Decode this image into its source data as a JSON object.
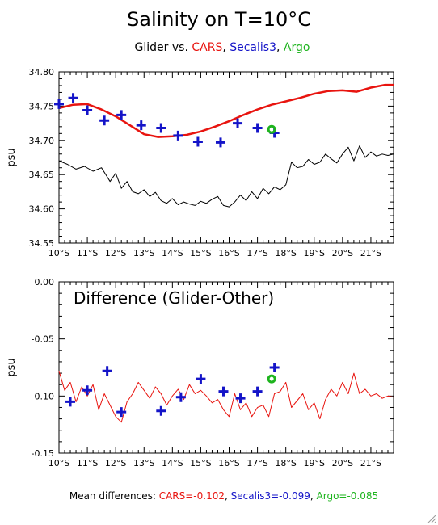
{
  "title": "Salinity on T=10°C",
  "subtitle": [
    {
      "text": "Glider vs. ",
      "color": "#000000"
    },
    {
      "text": "CARS",
      "color": "#e8140f"
    },
    {
      "text": ", ",
      "color": "#000000"
    },
    {
      "text": "Secalis3",
      "color": "#1414c8"
    },
    {
      "text": ", ",
      "color": "#000000"
    },
    {
      "text": "Argo",
      "color": "#1eb41e"
    }
  ],
  "footer": [
    {
      "text": "Mean differences: ",
      "color": "#000000"
    },
    {
      "text": "CARS=-0.102",
      "color": "#e8140f"
    },
    {
      "text": ", ",
      "color": "#000000"
    },
    {
      "text": "Secalis3=-0.099",
      "color": "#1414c8"
    },
    {
      "text": ", ",
      "color": "#000000"
    },
    {
      "text": "Argo=-0.085",
      "color": "#1eb41e"
    }
  ],
  "chart_data": [
    {
      "type": "line",
      "ylabel": "psu",
      "ylim": [
        34.55,
        34.8
      ],
      "xlim": [
        10.0,
        21.8
      ],
      "yticks": [
        "34.55",
        "34.60",
        "34.65",
        "34.70",
        "34.75",
        "34.80"
      ],
      "xticks": [
        "10°S",
        "11°S",
        "12°S",
        "13°S",
        "14°S",
        "15°S",
        "16°S",
        "17°S",
        "18°S",
        "19°S",
        "20°S",
        "21°S"
      ],
      "xtick_values": [
        10,
        11,
        12,
        13,
        14,
        15,
        16,
        17,
        18,
        19,
        20,
        21
      ],
      "series": [
        {
          "kind": "line",
          "color": "#e8140f",
          "width": 2.5,
          "x": [
            10.0,
            10.5,
            11.0,
            11.5,
            12.0,
            12.5,
            13.0,
            13.5,
            14.0,
            14.5,
            15.0,
            15.5,
            16.0,
            16.5,
            17.0,
            17.5,
            18.0,
            18.5,
            19.0,
            19.5,
            20.0,
            20.5,
            21.0,
            21.5,
            21.8
          ],
          "y": [
            34.747,
            34.752,
            34.753,
            34.745,
            34.735,
            34.722,
            34.709,
            34.705,
            34.706,
            34.708,
            34.713,
            34.72,
            34.728,
            34.737,
            34.745,
            34.752,
            34.757,
            34.762,
            34.768,
            34.772,
            34.773,
            34.771,
            34.777,
            34.781,
            34.781
          ]
        },
        {
          "kind": "line",
          "color": "#000000",
          "width": 1,
          "x": [
            10.0,
            10.3,
            10.6,
            10.9,
            11.2,
            11.5,
            11.8,
            12.0,
            12.2,
            12.4,
            12.6,
            12.8,
            13.0,
            13.2,
            13.4,
            13.6,
            13.8,
            14.0,
            14.2,
            14.4,
            14.6,
            14.8,
            15.0,
            15.2,
            15.4,
            15.6,
            15.8,
            16.0,
            16.2,
            16.4,
            16.6,
            16.8,
            17.0,
            17.2,
            17.4,
            17.6,
            17.8,
            18.0,
            18.2,
            18.4,
            18.6,
            18.8,
            19.0,
            19.2,
            19.4,
            19.6,
            19.8,
            20.0,
            20.2,
            20.4,
            20.6,
            20.8,
            21.0,
            21.2,
            21.4,
            21.6,
            21.8
          ],
          "y": [
            34.67,
            34.665,
            34.658,
            34.662,
            34.655,
            34.66,
            34.64,
            34.652,
            34.63,
            34.64,
            34.625,
            34.622,
            34.628,
            34.618,
            34.624,
            34.612,
            34.608,
            34.615,
            34.606,
            34.61,
            34.607,
            34.605,
            34.611,
            34.608,
            34.614,
            34.618,
            34.605,
            34.603,
            34.61,
            34.62,
            34.612,
            34.625,
            34.615,
            34.63,
            34.622,
            34.632,
            34.628,
            34.635,
            34.668,
            34.66,
            34.662,
            34.672,
            34.665,
            34.668,
            34.68,
            34.673,
            34.667,
            34.68,
            34.69,
            34.67,
            34.692,
            34.675,
            34.683,
            34.677,
            34.68,
            34.678,
            34.68
          ]
        },
        {
          "kind": "plus",
          "color": "#1414c8",
          "x": [
            10.0,
            10.5,
            11.0,
            11.6,
            12.2,
            12.9,
            13.6,
            14.2,
            14.9,
            15.7,
            16.3,
            17.0,
            17.6
          ],
          "y": [
            34.753,
            34.762,
            34.744,
            34.729,
            34.737,
            34.722,
            34.718,
            34.707,
            34.698,
            34.697,
            34.725,
            34.718,
            34.711
          ]
        },
        {
          "kind": "circle",
          "color": "#1eb41e",
          "x": [
            17.5
          ],
          "y": [
            34.716
          ]
        }
      ]
    },
    {
      "type": "line",
      "title": "Difference (Glider-Other)",
      "ylabel": "psu",
      "ylim": [
        -0.15,
        0.0
      ],
      "xlim": [
        10.0,
        21.8
      ],
      "yticks": [
        "-0.15",
        "-0.10",
        "-0.05",
        "0.00"
      ],
      "xticks": [
        "10°S",
        "11°S",
        "12°S",
        "13°S",
        "14°S",
        "15°S",
        "16°S",
        "17°S",
        "18°S",
        "19°S",
        "20°S",
        "21°S"
      ],
      "xtick_values": [
        10,
        11,
        12,
        13,
        14,
        15,
        16,
        17,
        18,
        19,
        20,
        21
      ],
      "series": [
        {
          "kind": "line",
          "color": "#e8140f",
          "width": 1,
          "x": [
            10.0,
            10.2,
            10.4,
            10.6,
            10.8,
            11.0,
            11.2,
            11.4,
            11.6,
            11.8,
            12.0,
            12.2,
            12.4,
            12.6,
            12.8,
            13.0,
            13.2,
            13.4,
            13.6,
            13.8,
            14.0,
            14.2,
            14.4,
            14.6,
            14.8,
            15.0,
            15.2,
            15.4,
            15.6,
            15.8,
            16.0,
            16.2,
            16.4,
            16.6,
            16.8,
            17.0,
            17.2,
            17.4,
            17.6,
            17.8,
            18.0,
            18.2,
            18.4,
            18.6,
            18.8,
            19.0,
            19.2,
            19.4,
            19.6,
            19.8,
            20.0,
            20.2,
            20.4,
            20.6,
            20.8,
            21.0,
            21.2,
            21.4,
            21.6,
            21.8
          ],
          "y": [
            -0.078,
            -0.095,
            -0.088,
            -0.105,
            -0.092,
            -0.1,
            -0.09,
            -0.112,
            -0.098,
            -0.108,
            -0.118,
            -0.123,
            -0.105,
            -0.098,
            -0.088,
            -0.095,
            -0.102,
            -0.092,
            -0.098,
            -0.108,
            -0.1,
            -0.094,
            -0.103,
            -0.09,
            -0.098,
            -0.095,
            -0.1,
            -0.106,
            -0.103,
            -0.112,
            -0.118,
            -0.098,
            -0.112,
            -0.106,
            -0.118,
            -0.11,
            -0.108,
            -0.118,
            -0.098,
            -0.096,
            -0.088,
            -0.11,
            -0.104,
            -0.098,
            -0.112,
            -0.106,
            -0.12,
            -0.103,
            -0.094,
            -0.1,
            -0.088,
            -0.098,
            -0.08,
            -0.098,
            -0.094,
            -0.1,
            -0.098,
            -0.102,
            -0.1,
            -0.101
          ]
        },
        {
          "kind": "plus",
          "color": "#1414c8",
          "x": [
            10.4,
            11.0,
            11.7,
            12.2,
            13.6,
            14.3,
            15.0,
            15.8,
            16.4,
            17.0,
            17.6
          ],
          "y": [
            -0.105,
            -0.095,
            -0.078,
            -0.114,
            -0.113,
            -0.101,
            -0.085,
            -0.096,
            -0.102,
            -0.096,
            -0.075
          ]
        },
        {
          "kind": "circle",
          "color": "#1eb41e",
          "x": [
            17.5
          ],
          "y": [
            -0.085
          ]
        }
      ]
    }
  ]
}
